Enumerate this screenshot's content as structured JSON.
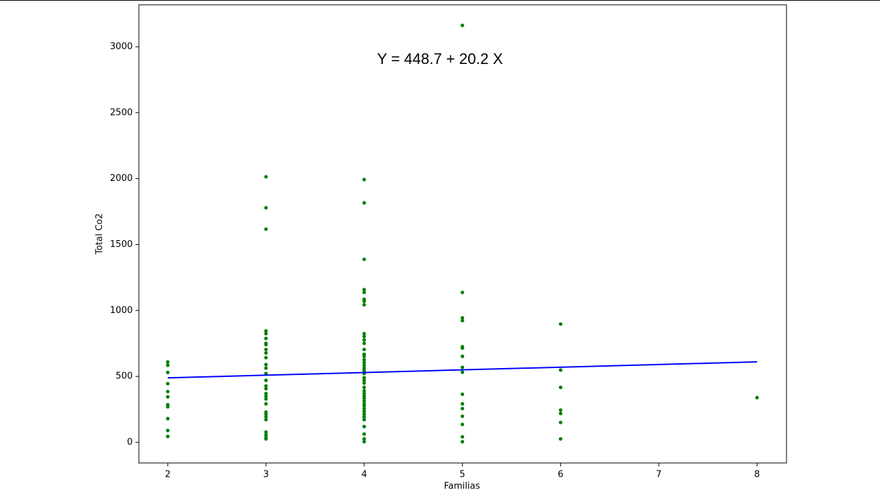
{
  "chart_data": {
    "type": "scatter",
    "annotation": "Y = 448.7 + 20.2 X",
    "x_label": "Familias",
    "y_label": "Total Co2",
    "xlim": [
      1.706,
      8.3
    ],
    "ylim": [
      -156.5,
      3318
    ],
    "xticks": [
      2,
      3,
      4,
      5,
      6,
      7,
      8
    ],
    "yticks": [
      0,
      500,
      1000,
      1500,
      2000,
      2500,
      3000
    ],
    "grid": false,
    "series": [
      {
        "color": "#008000",
        "style": "points",
        "x": [
          2,
          2,
          2,
          2,
          2,
          2,
          2,
          2,
          2,
          2,
          2,
          3,
          3,
          3,
          3,
          3,
          3,
          3,
          3,
          3,
          3,
          3,
          3,
          3,
          3,
          3,
          3,
          3,
          3,
          3,
          3,
          3,
          3,
          3,
          3,
          3,
          3,
          3,
          3,
          3,
          4,
          4,
          4,
          4,
          4,
          4,
          4,
          4,
          4,
          4,
          4,
          4,
          4,
          4,
          4,
          4,
          4,
          4,
          4,
          4,
          4,
          4,
          4,
          4,
          4,
          4,
          4,
          4,
          4,
          4,
          4,
          4,
          4,
          4,
          4,
          4,
          4,
          4,
          4,
          4,
          4,
          5,
          5,
          5,
          5,
          5,
          5,
          5,
          5,
          5,
          5,
          5,
          5,
          5,
          5,
          5,
          5,
          6,
          6,
          6,
          6,
          6,
          6,
          6,
          8
        ],
        "values": [
          610,
          585,
          530,
          445,
          385,
          345,
          285,
          270,
          180,
          90,
          45,
          2014,
          1779,
          1617,
          845,
          824,
          788,
          751,
          741,
          704,
          678,
          642,
          590,
          563,
          522,
          470,
          428,
          407,
          370,
          350,
          329,
          292,
          230,
          214,
          193,
          172,
          78,
          57,
          37,
          26,
          1993,
          1816,
          1388,
          1158,
          1137,
          1085,
          1070,
          1043,
          824,
          803,
          777,
          751,
          704,
          668,
          652,
          626,
          605,
          584,
          563,
          543,
          522,
          490,
          470,
          449,
          417,
          391,
          370,
          350,
          334,
          313,
          292,
          277,
          256,
          235,
          214,
          193,
          172,
          120,
          63,
          26,
          5,
          3162,
          1137,
          944,
          923,
          725,
          715,
          652,
          569,
          532,
          365,
          292,
          256,
          198,
          136,
          42,
          5,
          897,
          548,
          417,
          245,
          219,
          151,
          26,
          339
        ]
      },
      {
        "color": "#0000ff",
        "style": "line",
        "x": [
          2,
          8
        ],
        "values": [
          489.1,
          610.3
        ]
      }
    ]
  }
}
